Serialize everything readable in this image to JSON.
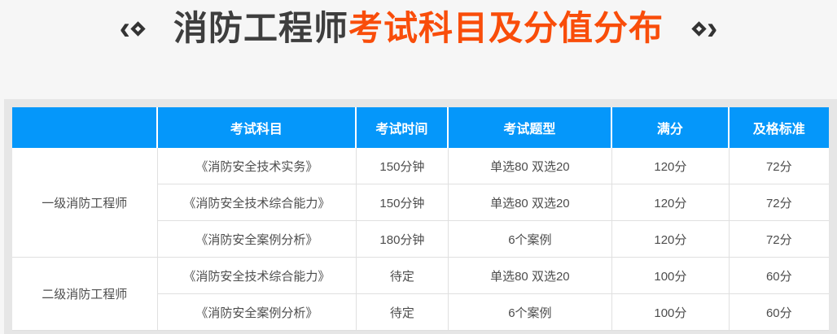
{
  "colors": {
    "page_bg": "#f6f6f6",
    "frame_bg": "#e6e6e6",
    "header_blue": "#0597fa",
    "cell_border": "#e0e0e0",
    "text_dark": "#4d4d4d",
    "title_dark": "#3e3e3e",
    "title_orange": "#f94d0a",
    "decor": "#333333"
  },
  "title": {
    "prefix": "消防工程师",
    "highlight": "考试科目及分值分布",
    "left_chevron": "‹",
    "right_chevron": "›"
  },
  "table": {
    "columns": [
      "",
      "考试科目",
      "考试时间",
      "考试题型",
      "满分",
      "及格标准"
    ],
    "groups": [
      {
        "label": "一级消防工程师",
        "rows": [
          {
            "subject": "《消防安全技术实务》",
            "time": "150分钟",
            "type": "单选80 双选20",
            "full": "120分",
            "pass": "72分"
          },
          {
            "subject": "《消防安全技术综合能力》",
            "time": "150分钟",
            "type": "单选80 双选20",
            "full": "120分",
            "pass": "72分"
          },
          {
            "subject": "《消防安全案例分析》",
            "time": "180分钟",
            "type": "6个案例",
            "full": "120分",
            "pass": "72分"
          }
        ]
      },
      {
        "label": "二级消防工程师",
        "rows": [
          {
            "subject": "《消防安全技术综合能力》",
            "time": "待定",
            "type": "单选80 双选20",
            "full": "100分",
            "pass": "60分"
          },
          {
            "subject": "《消防安全案例分析》",
            "time": "待定",
            "type": "6个案例",
            "full": "100分",
            "pass": "60分"
          }
        ]
      }
    ]
  }
}
